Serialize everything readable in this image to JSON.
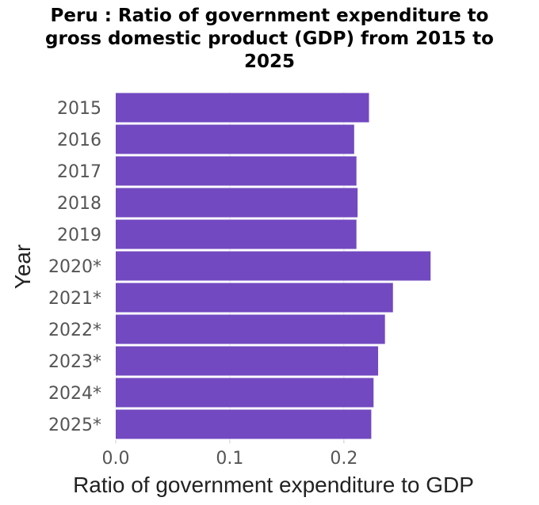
{
  "chart_data": {
    "type": "bar",
    "orientation": "horizontal",
    "title": "Peru : Ratio of government expenditure to gross domestic product (GDP) from 2015 to 2025",
    "title_lines": [
      "Peru : Ratio of government expenditure to",
      "gross domestic product (GDP) from 2015 to",
      "2025"
    ],
    "xlabel": "Ratio of government expenditure to GDP",
    "ylabel": "Year",
    "categories": [
      "2015",
      "2016",
      "2017",
      "2018",
      "2019",
      "2020*",
      "2021*",
      "2022*",
      "2023*",
      "2024*",
      "2025*"
    ],
    "values": [
      0.222,
      0.209,
      0.211,
      0.212,
      0.211,
      0.276,
      0.243,
      0.236,
      0.23,
      0.226,
      0.224
    ],
    "xlim": [
      0,
      0.28
    ],
    "xticks": [
      "0.0",
      "0.1",
      "0.2"
    ],
    "xtick_values": [
      0.0,
      0.1,
      0.2
    ],
    "bar_color": "#7249c1",
    "grid": false
  }
}
